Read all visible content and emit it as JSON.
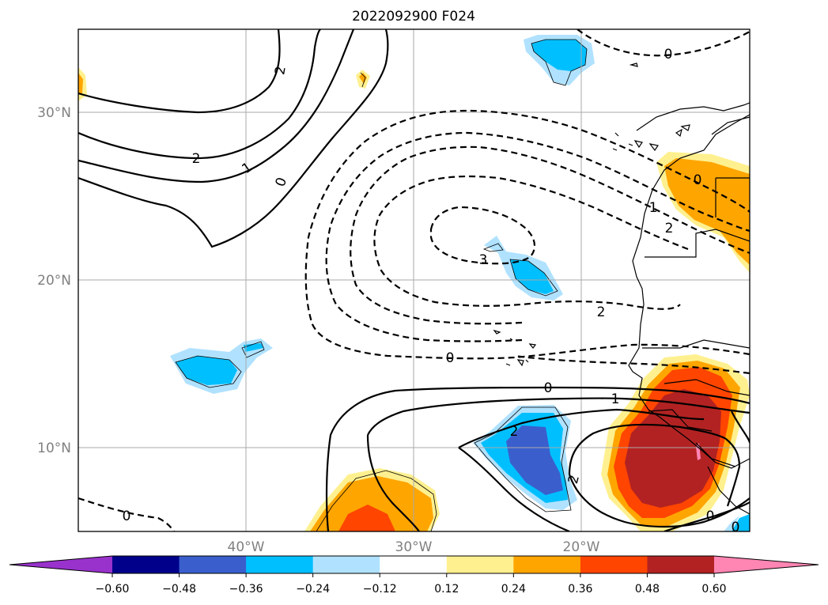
{
  "chart_data": {
    "type": "contour-map",
    "title": "2022092900 F024",
    "x_axis": {
      "ticks": [
        "40°W",
        "30°W",
        "20°W"
      ],
      "range_deg": [
        -50,
        -10
      ]
    },
    "y_axis": {
      "ticks": [
        "10°N",
        "20°N",
        "30°N"
      ],
      "range_deg": [
        5,
        35
      ]
    },
    "grid": true,
    "colorbar": {
      "orientation": "horizontal",
      "extend": "both",
      "levels": [
        "-0.60",
        "-0.48",
        "-0.36",
        "-0.24",
        "-0.12",
        "0.12",
        "0.24",
        "0.36",
        "0.48",
        "0.60"
      ],
      "colors": [
        "#9932cc",
        "#00008b",
        "#3a5fcd",
        "#00bfff",
        "#b0e2ff",
        "#ffffff",
        "#fff08f",
        "#ffa500",
        "#ff4500",
        "#b22222",
        "#ff85b3"
      ]
    },
    "contour_labels": [
      {
        "text": "2"
      },
      {
        "text": "2"
      },
      {
        "text": "1"
      },
      {
        "text": "0"
      },
      {
        "text": "0"
      },
      {
        "text": "3"
      },
      {
        "text": "2"
      },
      {
        "text": "0"
      },
      {
        "text": "1"
      },
      {
        "text": "2"
      },
      {
        "text": "0"
      },
      {
        "text": "0"
      },
      {
        "text": "1"
      },
      {
        "text": "2"
      },
      {
        "text": "2"
      },
      {
        "text": "0"
      },
      {
        "text": "0"
      },
      {
        "text": "0"
      }
    ]
  }
}
